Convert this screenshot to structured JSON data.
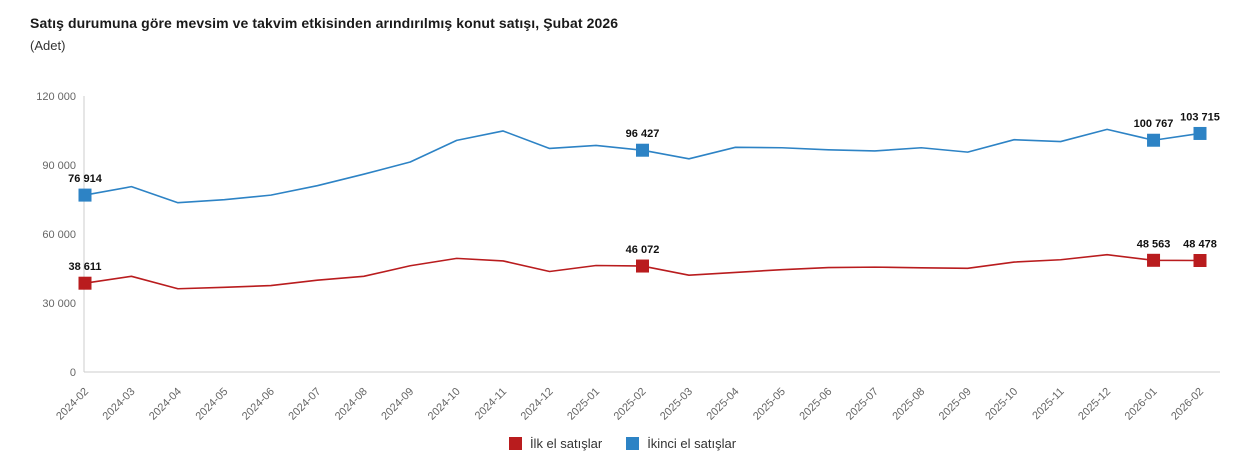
{
  "header": {
    "title": "Satış durumuna göre mevsim ve takvim etkisinden arındırılmış konut satışı, Şubat 2026",
    "subtitle": "(Adet)"
  },
  "colors": {
    "first_hand": "#b91c1e",
    "second_hand": "#2d83c5",
    "axis_line": "#cccccc",
    "tick_text": "#666666",
    "data_label_text": "#111111"
  },
  "chart_data": {
    "type": "line",
    "title": "Satış durumuna göre mevsim ve takvim etkisinden arındırılmış konut satışı, Şubat 2026",
    "ylabel": "(Adet)",
    "ylim": [
      0,
      120000
    ],
    "yticks": [
      0,
      30000,
      60000,
      90000,
      120000
    ],
    "grid": false,
    "legend_position": "bottom-center",
    "categories": [
      "2024-02",
      "2024-03",
      "2024-04",
      "2024-05",
      "2024-06",
      "2024-07",
      "2024-08",
      "2024-09",
      "2024-10",
      "2024-11",
      "2024-12",
      "2025-01",
      "2025-02",
      "2025-03",
      "2025-04",
      "2025-05",
      "2025-06",
      "2025-07",
      "2025-08",
      "2025-09",
      "2025-10",
      "2025-11",
      "2025-12",
      "2026-01",
      "2026-02"
    ],
    "series": [
      {
        "name": "İlk el satışlar",
        "color_key": "first_hand",
        "values": [
          38611,
          41600,
          36200,
          36800,
          37600,
          39900,
          41600,
          46200,
          49400,
          48300,
          43700,
          46300,
          46072,
          42100,
          43300,
          44500,
          45400,
          45600,
          45300,
          45100,
          47800,
          48800,
          51000,
          48563,
          48478
        ],
        "labeled_indices": [
          0,
          12,
          23,
          24
        ]
      },
      {
        "name": "İkinci el satışlar",
        "color_key": "second_hand",
        "values": [
          76914,
          80600,
          73600,
          74900,
          76900,
          81000,
          86000,
          91300,
          100700,
          104800,
          97200,
          98500,
          96427,
          92700,
          97700,
          97500,
          96600,
          96100,
          97500,
          95600,
          101000,
          100200,
          105500,
          100767,
          103715
        ],
        "labeled_indices": [
          0,
          12,
          23,
          24
        ]
      }
    ]
  }
}
